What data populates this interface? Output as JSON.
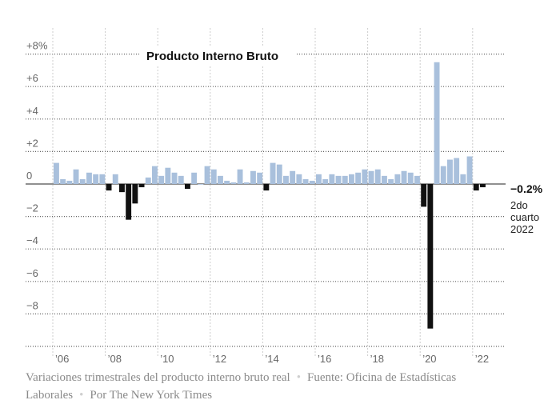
{
  "chart_data": {
    "type": "bar",
    "title": "Producto Interno Bruto",
    "ylim": [
      -10,
      8.6
    ],
    "y_ticks": [
      {
        "value": 8,
        "label": "+8%"
      },
      {
        "value": 6,
        "label": "+6"
      },
      {
        "value": 4,
        "label": "+4"
      },
      {
        "value": 2,
        "label": "+2"
      },
      {
        "value": 0,
        "label": "0"
      },
      {
        "value": -2,
        "label": "−2"
      },
      {
        "value": -4,
        "label": "−4"
      },
      {
        "value": -6,
        "label": "−6"
      },
      {
        "value": -8,
        "label": "−8"
      }
    ],
    "x_ticks": [
      "’06",
      "’08",
      "’10",
      "’12",
      "’14",
      "’16",
      "’18",
      "’20",
      "’22"
    ],
    "x_tick_years": [
      2006,
      2008,
      2010,
      2012,
      2014,
      2016,
      2018,
      2020,
      2022
    ],
    "start_period": "2006 Q1",
    "colors": {
      "positive": "#a9c0dc",
      "negative": "#111111"
    },
    "values": [
      1.3,
      0.3,
      0.2,
      0.9,
      0.3,
      0.7,
      0.6,
      0.6,
      -0.4,
      0.6,
      -0.5,
      -2.2,
      -1.2,
      -0.2,
      0.4,
      1.1,
      0.5,
      1.0,
      0.7,
      0.5,
      -0.3,
      0.7,
      0.0,
      1.1,
      0.9,
      0.5,
      0.2,
      0.1,
      0.9,
      0.1,
      0.8,
      0.7,
      -0.4,
      1.3,
      1.2,
      0.5,
      0.8,
      0.6,
      0.3,
      0.2,
      0.6,
      0.3,
      0.6,
      0.5,
      0.5,
      0.6,
      0.7,
      0.9,
      0.8,
      0.9,
      0.5,
      0.3,
      0.6,
      0.8,
      0.7,
      0.5,
      -1.4,
      -8.9,
      7.5,
      1.1,
      1.5,
      1.6,
      0.6,
      1.7,
      -0.4,
      -0.2
    ],
    "annotation": {
      "value": "−0.2%",
      "lines": [
        "2do",
        "cuarto",
        "2022"
      ]
    }
  },
  "caption": {
    "description": "Variaciones trimestrales del producto interno bruto real",
    "source": "Fuente: Oficina de Estadísticas Laborales",
    "credit": "Por The New York Times"
  }
}
